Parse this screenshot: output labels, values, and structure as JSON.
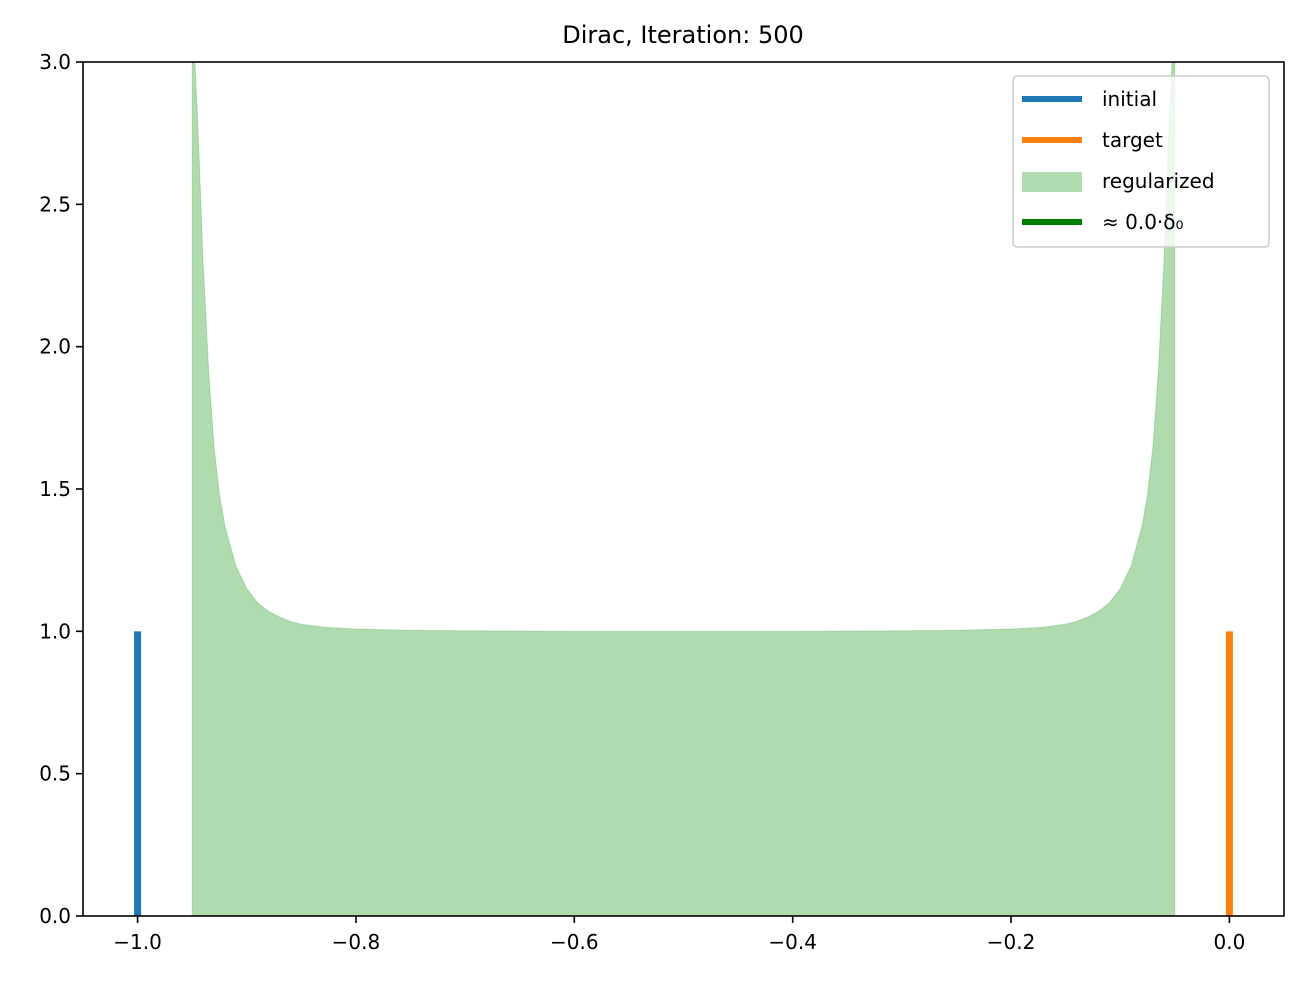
{
  "chart_data": {
    "type": "area",
    "title": "Dirac, Iteration: 500",
    "xlabel": "",
    "ylabel": "",
    "xlim": [
      -1.05,
      0.05
    ],
    "ylim": [
      0,
      3.0
    ],
    "grid": false,
    "legend_placement": "top-right",
    "x_ticks": [
      -1.0,
      -0.8,
      -0.6,
      -0.4,
      -0.2,
      0.0
    ],
    "x_tick_labels": [
      "−1.0",
      "−0.8",
      "−0.6",
      "−0.4",
      "−0.2",
      "0.0"
    ],
    "y_ticks": [
      0.0,
      0.5,
      1.0,
      1.5,
      2.0,
      2.5,
      3.0
    ],
    "y_tick_labels": [
      "0.0",
      "0.5",
      "1.0",
      "1.5",
      "2.0",
      "2.5",
      "3.0"
    ],
    "series": [
      {
        "name": "initial",
        "kind": "spike",
        "color": "#1f77b4",
        "x": -1.0,
        "y": 1.0
      },
      {
        "name": "target",
        "kind": "spike",
        "color": "#ff7f0e",
        "x": 0.0,
        "y": 1.0
      },
      {
        "name": "regularized",
        "kind": "filled-area",
        "color": "#2ca02c",
        "opacity": 0.38,
        "x": [
          -0.95,
          -0.945,
          -0.94,
          -0.935,
          -0.93,
          -0.925,
          -0.92,
          -0.91,
          -0.9,
          -0.89,
          -0.88,
          -0.87,
          -0.86,
          -0.85,
          -0.83,
          -0.8,
          -0.75,
          -0.7,
          -0.6,
          -0.5,
          -0.4,
          -0.3,
          -0.25,
          -0.2,
          -0.17,
          -0.15,
          -0.14,
          -0.13,
          -0.12,
          -0.11,
          -0.1,
          -0.09,
          -0.08,
          -0.075,
          -0.07,
          -0.065,
          -0.06,
          -0.055,
          -0.05
        ],
        "y": [
          3.2,
          2.8,
          2.3,
          1.92,
          1.65,
          1.48,
          1.37,
          1.23,
          1.15,
          1.1,
          1.07,
          1.05,
          1.035,
          1.025,
          1.015,
          1.008,
          1.004,
          1.002,
          1.0,
          1.0,
          1.0,
          1.002,
          1.004,
          1.008,
          1.015,
          1.025,
          1.035,
          1.05,
          1.07,
          1.1,
          1.15,
          1.23,
          1.37,
          1.48,
          1.65,
          1.92,
          2.3,
          2.8,
          3.2
        ]
      },
      {
        "name": "≈ 0.0·δ₀",
        "kind": "legend-only",
        "color": "#008000",
        "x": 0.0,
        "y": 0.0
      }
    ]
  }
}
